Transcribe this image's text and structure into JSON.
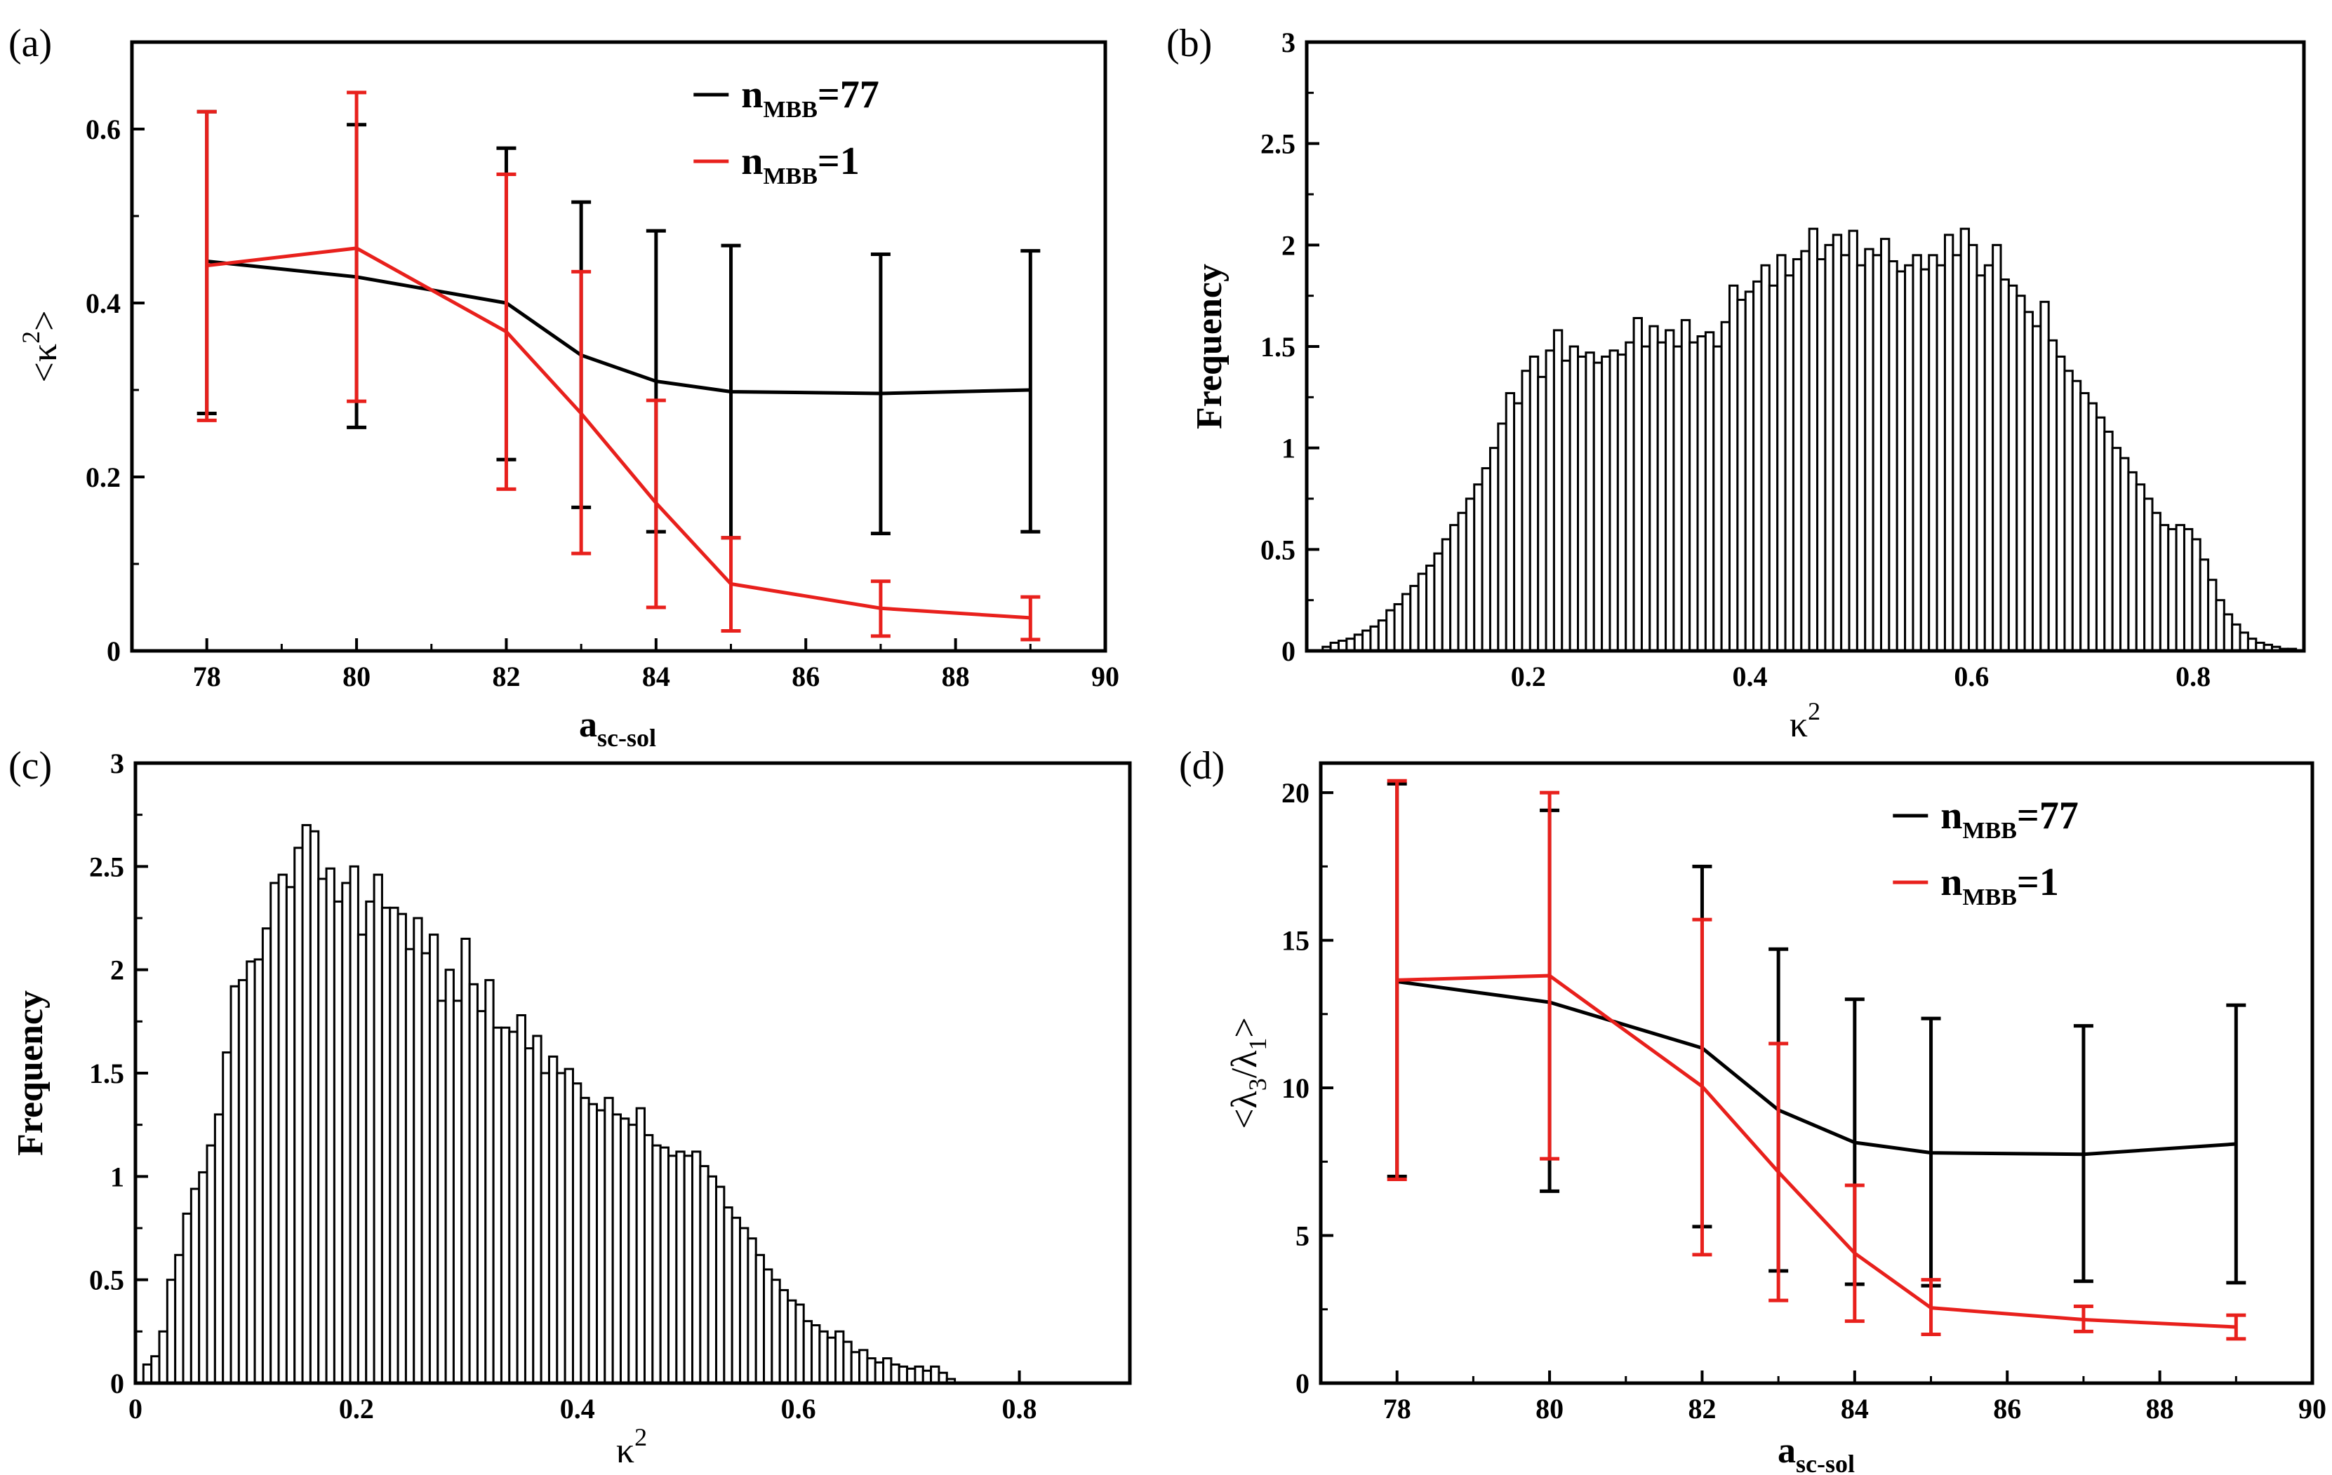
{
  "chart_data": [
    {
      "panel": "(a)",
      "type": "line",
      "xlabel": "a",
      "xlabel_sub": "sc-sol",
      "ylabel": "<κ",
      "ylabel_sup": "2",
      "ylabel_end": ">",
      "xlim": [
        77,
        90
      ],
      "ylim": [
        0,
        0.7
      ],
      "xticks": [
        78,
        80,
        82,
        84,
        86,
        88,
        90
      ],
      "yticks": [
        0,
        0.2,
        0.4,
        0.6
      ],
      "ytick_labels": [
        "0",
        "0.2",
        "0.4",
        "0.6"
      ],
      "legend_position": "top-right",
      "series": [
        {
          "name": "n",
          "name_sub": "MBB",
          "name_suffix": "=77",
          "color": "#000000",
          "x": [
            78,
            80,
            82,
            83,
            84,
            85,
            87,
            89
          ],
          "y": [
            0.448,
            0.43,
            0.4,
            0.34,
            0.31,
            0.298,
            0.296,
            0.3
          ],
          "err_low": [
            0.273,
            0.257,
            0.22,
            0.165,
            0.137,
            0.13,
            0.135,
            0.137
          ],
          "err_high": [
            0.62,
            0.605,
            0.578,
            0.516,
            0.483,
            0.466,
            0.456,
            0.46
          ]
        },
        {
          "name": "n",
          "name_sub": "MBB",
          "name_suffix": "=1",
          "color": "#e8201c",
          "x": [
            78,
            80,
            82,
            83,
            84,
            85,
            87,
            89
          ],
          "y": [
            0.443,
            0.463,
            0.367,
            0.273,
            0.17,
            0.077,
            0.049,
            0.038
          ],
          "err_low": [
            0.265,
            0.287,
            0.186,
            0.112,
            0.05,
            0.023,
            0.017,
            0.013
          ],
          "err_high": [
            0.62,
            0.642,
            0.548,
            0.436,
            0.288,
            0.13,
            0.08,
            0.062
          ]
        }
      ]
    },
    {
      "panel": "(b)",
      "type": "bar",
      "xlabel": "κ",
      "xlabel_sup": "2",
      "ylabel": "Frequency",
      "xlim": [
        0,
        0.9
      ],
      "ylim": [
        0,
        3
      ],
      "xticks": [
        0.2,
        0.4,
        0.6,
        0.8
      ],
      "yticks": [
        0,
        0.5,
        1,
        1.5,
        2,
        2.5,
        3
      ],
      "ytick_labels": [
        "0",
        "0.5",
        "1",
        "1.5",
        "2",
        "2.5",
        "3"
      ],
      "bin_width": 0.0072,
      "x_start": 0.0,
      "values": [
        0.0,
        0.0,
        0.02,
        0.04,
        0.05,
        0.06,
        0.08,
        0.1,
        0.12,
        0.15,
        0.2,
        0.23,
        0.28,
        0.32,
        0.38,
        0.42,
        0.48,
        0.55,
        0.62,
        0.68,
        0.75,
        0.82,
        0.9,
        1.0,
        1.12,
        1.27,
        1.22,
        1.38,
        1.45,
        1.35,
        1.48,
        1.58,
        1.43,
        1.5,
        1.45,
        1.47,
        1.42,
        1.45,
        1.48,
        1.46,
        1.52,
        1.64,
        1.5,
        1.6,
        1.52,
        1.58,
        1.5,
        1.63,
        1.52,
        1.55,
        1.57,
        1.5,
        1.62,
        1.8,
        1.73,
        1.77,
        1.82,
        1.9,
        1.8,
        1.95,
        1.85,
        1.93,
        1.97,
        2.08,
        1.93,
        2.0,
        2.05,
        1.95,
        2.07,
        1.9,
        1.98,
        1.95,
        2.03,
        1.92,
        1.87,
        1.9,
        1.95,
        1.88,
        1.95,
        1.9,
        2.05,
        1.95,
        2.08,
        2.0,
        1.85,
        1.9,
        2.0,
        1.83,
        1.8,
        1.75,
        1.67,
        1.6,
        1.72,
        1.53,
        1.45,
        1.38,
        1.33,
        1.27,
        1.22,
        1.15,
        1.08,
        1.0,
        0.95,
        0.88,
        0.82,
        0.75,
        0.68,
        0.62,
        0.6,
        0.62,
        0.6,
        0.55,
        0.45,
        0.35,
        0.25,
        0.18,
        0.13,
        0.09,
        0.06,
        0.04,
        0.03,
        0.02,
        0.01,
        0.01,
        0.0,
        0.0
      ]
    },
    {
      "panel": "(c)",
      "type": "bar",
      "xlabel": "κ",
      "xlabel_sup": "2",
      "ylabel": "Frequency",
      "xlim": [
        0,
        0.9
      ],
      "ylim": [
        0,
        3
      ],
      "xticks": [
        0,
        0.2,
        0.4,
        0.6,
        0.8
      ],
      "yticks": [
        0,
        0.5,
        1,
        1.5,
        2,
        2.5,
        3
      ],
      "ytick_labels": [
        "0",
        "0.5",
        "1",
        "1.5",
        "2",
        "2.5",
        "3"
      ],
      "bin_width": 0.0072,
      "x_start": 0.0,
      "values": [
        0.0,
        0.09,
        0.13,
        0.25,
        0.5,
        0.62,
        0.82,
        0.94,
        1.02,
        1.15,
        1.3,
        1.6,
        1.92,
        1.95,
        2.04,
        2.05,
        2.2,
        2.42,
        2.46,
        2.4,
        2.59,
        2.7,
        2.67,
        2.44,
        2.49,
        2.33,
        2.42,
        2.5,
        2.17,
        2.33,
        2.46,
        2.3,
        2.3,
        2.27,
        2.1,
        2.25,
        2.08,
        2.17,
        1.85,
        2.0,
        1.85,
        2.15,
        1.93,
        1.8,
        1.95,
        1.72,
        1.72,
        1.7,
        1.78,
        1.62,
        1.68,
        1.5,
        1.58,
        1.5,
        1.52,
        1.45,
        1.38,
        1.35,
        1.32,
        1.38,
        1.3,
        1.28,
        1.25,
        1.33,
        1.2,
        1.15,
        1.14,
        1.1,
        1.12,
        1.1,
        1.12,
        1.05,
        1.0,
        0.95,
        0.85,
        0.8,
        0.75,
        0.7,
        0.62,
        0.55,
        0.5,
        0.45,
        0.4,
        0.38,
        0.3,
        0.28,
        0.25,
        0.22,
        0.25,
        0.2,
        0.15,
        0.16,
        0.12,
        0.1,
        0.12,
        0.09,
        0.08,
        0.07,
        0.08,
        0.06,
        0.08,
        0.05,
        0.02,
        0.0
      ]
    },
    {
      "panel": "(d)",
      "type": "line",
      "xlabel": "a",
      "xlabel_sub": "sc-sol",
      "ylabel": "<λ",
      "ylabel_sub1": "3",
      "ylabel_mid": "/λ",
      "ylabel_sub2": "1",
      "ylabel_end": ">",
      "xlim": [
        77,
        90
      ],
      "ylim": [
        0,
        21
      ],
      "xticks": [
        78,
        80,
        82,
        84,
        86,
        88,
        90
      ],
      "yticks": [
        0,
        5,
        10,
        15,
        20
      ],
      "ytick_labels": [
        "0",
        "5",
        "10",
        "15",
        "20"
      ],
      "legend_position": "top-right",
      "series": [
        {
          "name": "n",
          "name_sub": "MBB",
          "name_suffix": "=77",
          "color": "#000000",
          "x": [
            78,
            80,
            82,
            83,
            84,
            85,
            87,
            89
          ],
          "y": [
            13.6,
            12.9,
            11.35,
            9.25,
            8.15,
            7.8,
            7.75,
            8.1
          ],
          "err_low": [
            7.0,
            6.5,
            5.3,
            3.8,
            3.35,
            3.3,
            3.45,
            3.4
          ],
          "err_high": [
            20.3,
            19.4,
            17.5,
            14.7,
            13.0,
            12.35,
            12.1,
            12.8
          ]
        },
        {
          "name": "n",
          "name_sub": "MBB",
          "name_suffix": "=1",
          "color": "#e8201c",
          "x": [
            78,
            80,
            82,
            83,
            84,
            85,
            87,
            89
          ],
          "y": [
            13.65,
            13.8,
            10.05,
            7.15,
            4.4,
            2.55,
            2.15,
            1.9
          ],
          "err_low": [
            6.9,
            7.6,
            4.35,
            2.8,
            2.1,
            1.65,
            1.75,
            1.5
          ],
          "err_high": [
            20.4,
            20.0,
            15.7,
            11.5,
            6.7,
            3.5,
            2.6,
            2.3
          ]
        }
      ]
    }
  ]
}
